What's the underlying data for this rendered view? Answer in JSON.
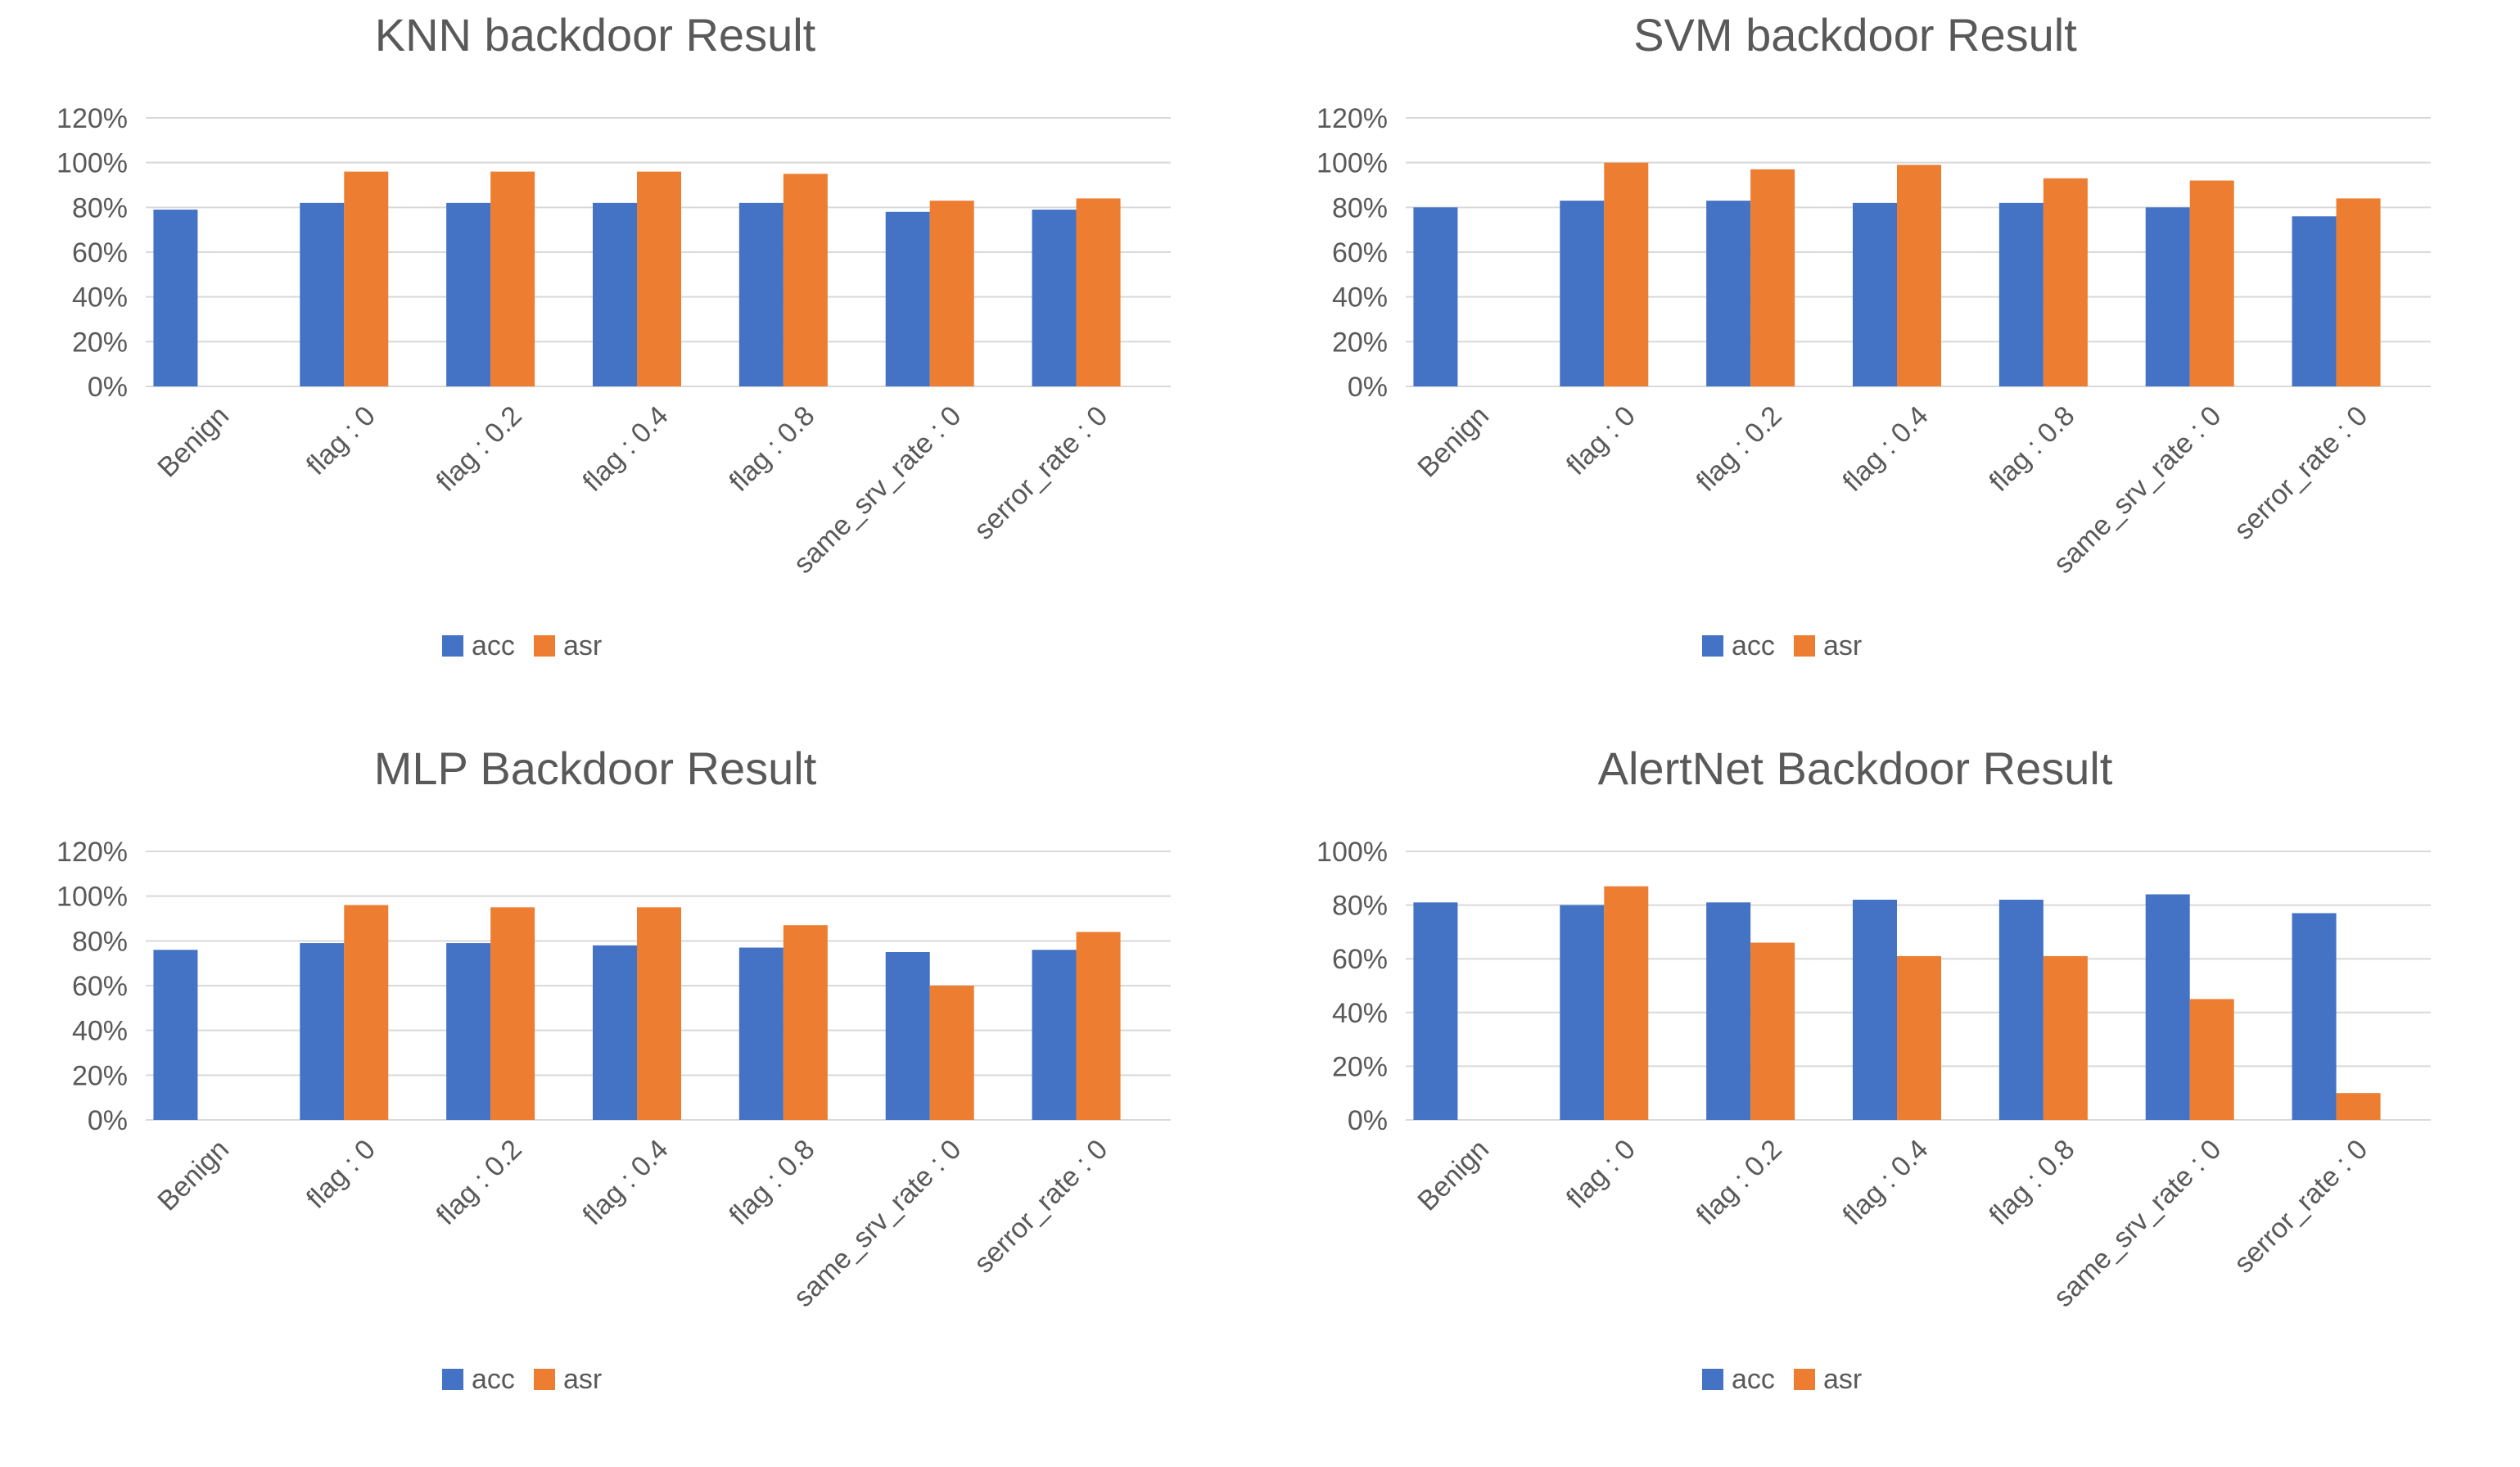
{
  "colors": {
    "acc": "#4472C4",
    "asr": "#ED7D31",
    "grid": "#D9D9D9",
    "text": "#595959"
  },
  "chart_data": [
    {
      "id": "knn",
      "type": "bar",
      "title": "KNN backdoor Result",
      "categories": [
        "Benign",
        "flag : 0",
        "flag : 0.2",
        "flag : 0.4",
        "flag : 0.8",
        "same_srv_rate : 0",
        "serror_rate : 0"
      ],
      "series": [
        {
          "name": "acc",
          "values": [
            79,
            82,
            82,
            82,
            82,
            78,
            79
          ]
        },
        {
          "name": "asr",
          "values": [
            null,
            96,
            96,
            96,
            95,
            83,
            84
          ]
        }
      ],
      "ylim": [
        0,
        120
      ],
      "yticks": [
        "0%",
        "20%",
        "40%",
        "60%",
        "80%",
        "100%",
        "120%"
      ],
      "legend": "bottom"
    },
    {
      "id": "svm",
      "type": "bar",
      "title": "SVM backdoor Result",
      "categories": [
        "Benign",
        "flag : 0",
        "flag : 0.2",
        "flag : 0.4",
        "flag : 0.8",
        "same_srv_rate : 0",
        "serror_rate : 0"
      ],
      "series": [
        {
          "name": "acc",
          "values": [
            80,
            83,
            83,
            82,
            82,
            80,
            76
          ]
        },
        {
          "name": "asr",
          "values": [
            null,
            100,
            97,
            99,
            93,
            92,
            84
          ]
        }
      ],
      "ylim": [
        0,
        120
      ],
      "yticks": [
        "0%",
        "20%",
        "40%",
        "60%",
        "80%",
        "100%",
        "120%"
      ],
      "legend": "bottom"
    },
    {
      "id": "mlp",
      "type": "bar",
      "title": "MLP Backdoor Result",
      "categories": [
        "Benign",
        "flag : 0",
        "flag : 0.2",
        "flag : 0.4",
        "flag : 0.8",
        "same_srv_rate : 0",
        "serror_rate : 0"
      ],
      "series": [
        {
          "name": "acc",
          "values": [
            76,
            79,
            79,
            78,
            77,
            75,
            76
          ]
        },
        {
          "name": "asr",
          "values": [
            null,
            96,
            95,
            95,
            87,
            60,
            84
          ]
        }
      ],
      "ylim": [
        0,
        120
      ],
      "yticks": [
        "0%",
        "20%",
        "40%",
        "60%",
        "80%",
        "100%",
        "120%"
      ],
      "legend": "bottom"
    },
    {
      "id": "alertnet",
      "type": "bar",
      "title": "AlertNet Backdoor Result",
      "categories": [
        "Benign",
        "flag : 0",
        "flag : 0.2",
        "flag : 0.4",
        "flag : 0.8",
        "same_srv_rate : 0",
        "serror_rate : 0"
      ],
      "series": [
        {
          "name": "acc",
          "values": [
            81,
            80,
            81,
            82,
            82,
            84,
            77
          ]
        },
        {
          "name": "asr",
          "values": [
            null,
            87,
            66,
            61,
            61,
            45,
            10
          ]
        }
      ],
      "ylim": [
        0,
        100
      ],
      "yticks": [
        "0%",
        "20%",
        "40%",
        "60%",
        "80%",
        "100%"
      ],
      "legend": "bottom"
    }
  ]
}
